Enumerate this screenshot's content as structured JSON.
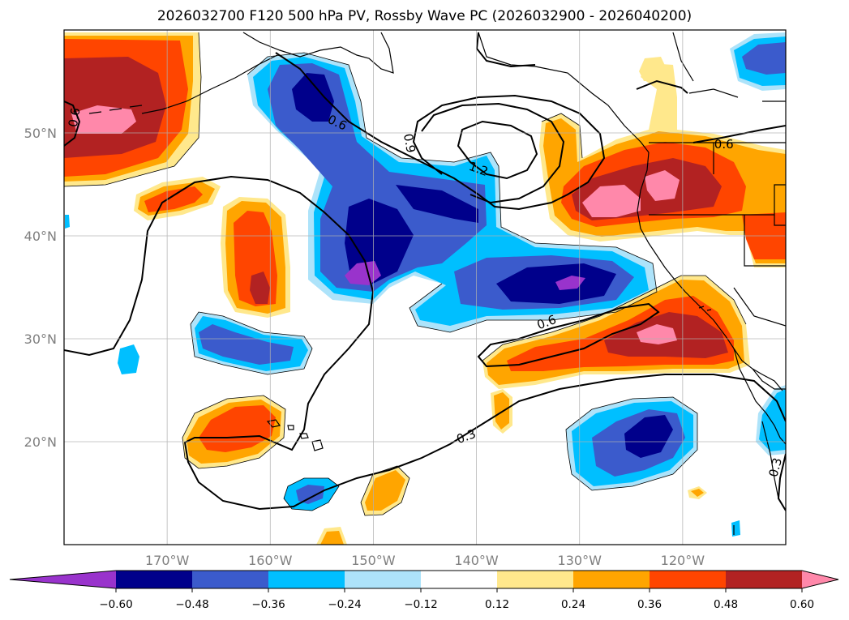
{
  "title": "2026032700 F120 500 hPa PV, Rossby Wave PC (2026032900 - 2026040200)",
  "map": {
    "lon_range": [
      -180,
      -110
    ],
    "lat_range": [
      10,
      60
    ],
    "lon_ticks": [
      {
        "value": -170,
        "label": "170°W"
      },
      {
        "value": -160,
        "label": "160°W"
      },
      {
        "value": -150,
        "label": "150°W"
      },
      {
        "value": -140,
        "label": "140°W"
      },
      {
        "value": -130,
        "label": "130°W"
      },
      {
        "value": -120,
        "label": "120°W"
      }
    ],
    "lat_ticks": [
      {
        "value": 50,
        "label": "50°N"
      },
      {
        "value": 40,
        "label": "40°N"
      },
      {
        "value": 30,
        "label": "30°N"
      },
      {
        "value": 20,
        "label": "20°N"
      }
    ],
    "grid": true
  },
  "colorbar": {
    "boundaries": [
      "−0.60",
      "−0.48",
      "−0.36",
      "−0.24",
      "−0.12",
      "0.12",
      "0.24",
      "0.36",
      "0.48",
      "0.60"
    ],
    "colors": [
      "#9933cc",
      "#00008b",
      "#3b5bcc",
      "#00bfff",
      "#ade3fa",
      "#ffffff",
      "#ffe88c",
      "#ffa500",
      "#ff4500",
      "#b22222",
      "#ff88aa"
    ],
    "extend": "both"
  },
  "contour_labels": [
    {
      "text": "0.6",
      "lon": -179,
      "lat": 51.5,
      "rot": -80
    },
    {
      "text": "0.6",
      "lon": -153.5,
      "lat": 51,
      "rot": 25
    },
    {
      "text": "0.9",
      "lon": -146.5,
      "lat": 49,
      "rot": 80
    },
    {
      "text": "1.2",
      "lon": -139.8,
      "lat": 46.5,
      "rot": 20
    },
    {
      "text": "0.6",
      "lon": -116,
      "lat": 48.9,
      "rot": 0
    },
    {
      "text": "0.6",
      "lon": -133.2,
      "lat": 31.6,
      "rot": -20
    },
    {
      "text": "0.3",
      "lon": -141,
      "lat": 20.5,
      "rot": -20
    },
    {
      "text": "0.3",
      "lon": -111,
      "lat": 17.5,
      "rot": -75
    }
  ]
}
